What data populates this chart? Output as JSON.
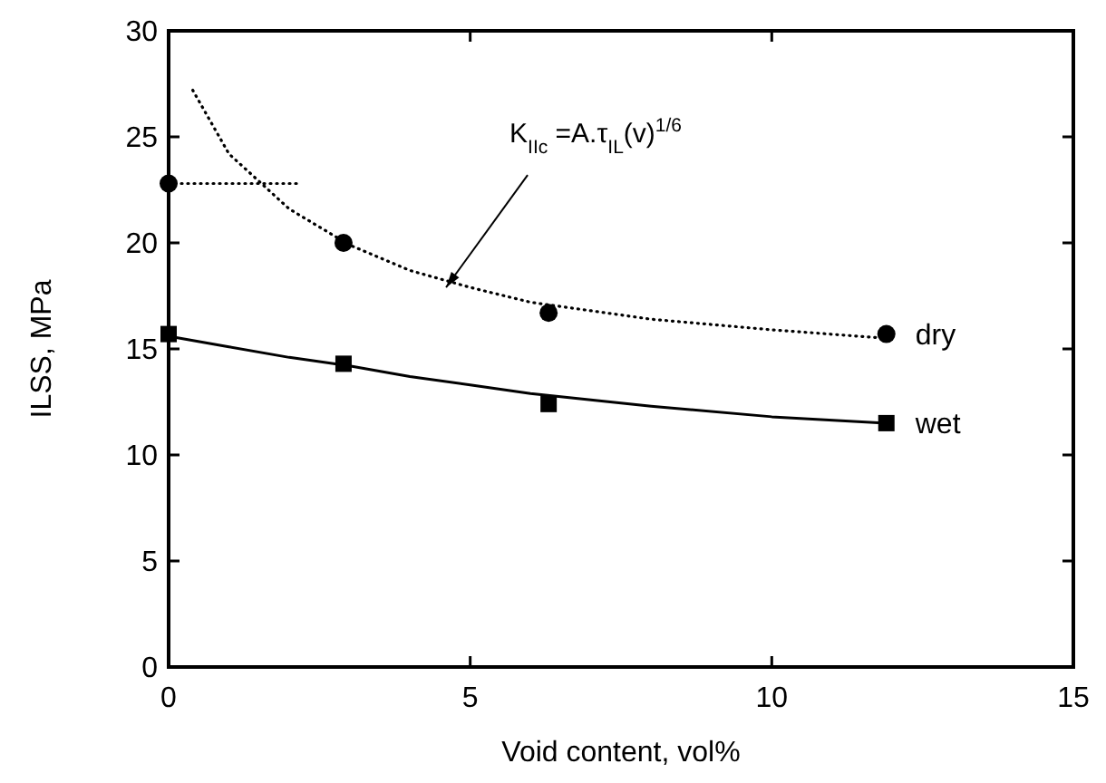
{
  "chart_data": {
    "type": "scatter",
    "xlabel": "Void content, vol%",
    "ylabel": "ILSS, MPa",
    "xlim": [
      0,
      15
    ],
    "ylim": [
      0,
      30
    ],
    "xticks": [
      0,
      5,
      10,
      15
    ],
    "yticks": [
      0,
      5,
      10,
      15,
      20,
      25,
      30
    ],
    "grid": false,
    "series": [
      {
        "name": "dry",
        "marker": "circle",
        "color": "#000000",
        "x": [
          0,
          2.9,
          6.3,
          11.9
        ],
        "values": [
          22.8,
          20.0,
          16.7,
          15.7
        ]
      },
      {
        "name": "wet",
        "marker": "square",
        "color": "#000000",
        "x": [
          0,
          2.9,
          6.3,
          11.9
        ],
        "values": [
          15.7,
          14.3,
          12.4,
          11.5
        ]
      },
      {
        "type": "line",
        "line_style": "dotted",
        "marker": "none",
        "color": "#000000",
        "x": [
          0.4,
          1,
          2,
          3,
          4,
          5,
          6,
          8,
          10,
          11.9
        ],
        "values": [
          27.2,
          24.2,
          21.6,
          19.9,
          18.7,
          17.9,
          17.2,
          16.4,
          15.9,
          15.5
        ]
      },
      {
        "type": "line",
        "line_style": "dotted",
        "marker": "none",
        "color": "#000000",
        "x": [
          0,
          2.2
        ],
        "values": [
          22.8,
          22.8
        ]
      },
      {
        "type": "line",
        "line_style": "solid",
        "marker": "none",
        "color": "#000000",
        "x": [
          0,
          1,
          2,
          3,
          4,
          5,
          6,
          8,
          10,
          11.9
        ],
        "values": [
          15.6,
          15.1,
          14.6,
          14.2,
          13.7,
          13.3,
          12.9,
          12.3,
          11.8,
          11.5
        ]
      }
    ],
    "annotations": [
      {
        "text": "K$_{IIc}$ =A.τ$_{IL}$(v)$^{1/6}$",
        "x": 4.6,
        "y": 17.9
      }
    ]
  }
}
